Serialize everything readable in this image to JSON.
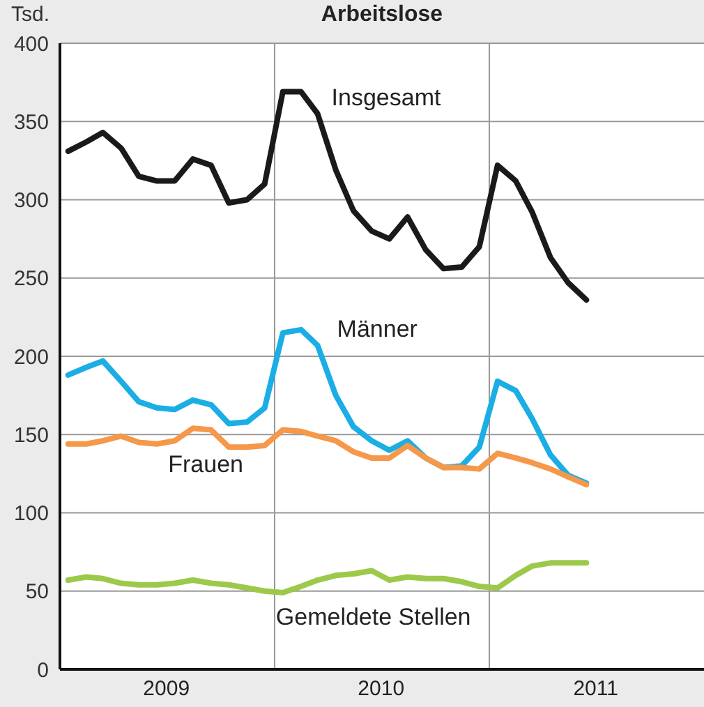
{
  "chart_data": {
    "type": "line",
    "title": "Arbeitslose",
    "ylabel": "Tsd.",
    "x": [
      "2009-01-15",
      "2009-02-15",
      "2009-03-15",
      "2009-04-15",
      "2009-05-15",
      "2009-06-15",
      "2009-07-15",
      "2009-08-15",
      "2009-09-15",
      "2009-10-15",
      "2009-11-15",
      "2009-12-15",
      "2010-01-15",
      "2010-02-15",
      "2010-03-15",
      "2010-04-15",
      "2010-05-15",
      "2010-06-15",
      "2010-07-15",
      "2010-08-15",
      "2010-09-15",
      "2010-10-15",
      "2010-11-15",
      "2010-12-15",
      "2011-01-15",
      "2011-02-15",
      "2011-03-15",
      "2011-04-15",
      "2011-05-15",
      "2011-06-15"
    ],
    "series": [
      {
        "name": "Insgesamt",
        "color": "#1a1a1a",
        "values": [
          331,
          337,
          343,
          333,
          315,
          312,
          312,
          326,
          322,
          298,
          300,
          310,
          369,
          369,
          355,
          319,
          293,
          280,
          275,
          289,
          268,
          256,
          257,
          270,
          322,
          312,
          292,
          263,
          247,
          236
        ]
      },
      {
        "name": "Männer",
        "color": "#1aaee5",
        "values": [
          188,
          193,
          197,
          184,
          171,
          167,
          166,
          172,
          169,
          157,
          158,
          167,
          215,
          217,
          207,
          175,
          155,
          146,
          140,
          146,
          135,
          129,
          130,
          142,
          184,
          178,
          160,
          137,
          124,
          119
        ]
      },
      {
        "name": "Frauen",
        "color": "#f5984a",
        "values": [
          144,
          144,
          146,
          149,
          145,
          144,
          146,
          154,
          153,
          142,
          142,
          143,
          153,
          152,
          149,
          146,
          139,
          135,
          135,
          143,
          135,
          129,
          129,
          128,
          138,
          135,
          132,
          128,
          123,
          118
        ]
      },
      {
        "name": "Gemeldete Stellen",
        "color": "#9cc94a",
        "values": [
          57,
          59,
          58,
          55,
          54,
          54,
          55,
          57,
          55,
          54,
          52,
          50,
          49,
          53,
          57,
          60,
          61,
          63,
          57,
          59,
          58,
          58,
          56,
          53,
          52,
          60,
          66,
          68,
          68,
          68
        ]
      }
    ],
    "xlim": [
      "2009-01-01",
      "2012-01-01"
    ],
    "xticks": [
      {
        "value": "2009-07-01",
        "label": "2009"
      },
      {
        "value": "2010-01-01",
        "label": null
      },
      {
        "value": "2010-07-01",
        "label": "2010"
      },
      {
        "value": "2011-01-01",
        "label": null
      },
      {
        "value": "2011-07-01",
        "label": "2011"
      }
    ],
    "ylim": [
      0,
      400
    ],
    "yticks": [
      0,
      50,
      100,
      150,
      200,
      250,
      300,
      350,
      400
    ],
    "grid": true,
    "marker": "none",
    "line_style": "solid"
  }
}
